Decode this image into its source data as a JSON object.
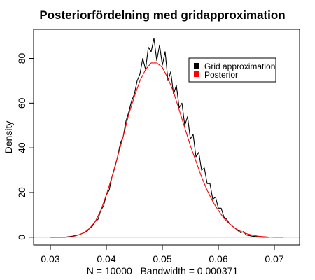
{
  "chart_data": {
    "type": "line",
    "title": "Posteriorfördelning med gridapproximation",
    "xlabel": "N = 10000   Bandwidth = 0.000371",
    "ylabel": "Density",
    "xlim": [
      0.027,
      0.0745
    ],
    "ylim": [
      -3.5,
      93
    ],
    "x_ticks": [
      "0.03",
      "0.04",
      "0.05",
      "0.06",
      "0.07"
    ],
    "x_tick_values": [
      0.03,
      0.04,
      0.05,
      0.06,
      0.07
    ],
    "y_ticks": [
      "0",
      "20",
      "40",
      "60",
      "80"
    ],
    "y_tick_values": [
      0,
      20,
      40,
      60,
      80
    ],
    "grid": false,
    "legend_position": "top-right",
    "baseline": {
      "y": 0,
      "color": "#bebebe"
    },
    "series": [
      {
        "name": "Grid approximation",
        "color": "#000000",
        "x": [
          0.03,
          0.0325,
          0.034,
          0.035,
          0.036,
          0.0365,
          0.037,
          0.0375,
          0.038,
          0.0385,
          0.039,
          0.0395,
          0.04,
          0.0405,
          0.041,
          0.0415,
          0.042,
          0.0425,
          0.043,
          0.0435,
          0.044,
          0.0445,
          0.045,
          0.0455,
          0.046,
          0.0465,
          0.047,
          0.0475,
          0.048,
          0.0485,
          0.049,
          0.0495,
          0.05,
          0.0505,
          0.051,
          0.0515,
          0.052,
          0.0525,
          0.053,
          0.0535,
          0.054,
          0.0545,
          0.055,
          0.0555,
          0.056,
          0.0565,
          0.057,
          0.0575,
          0.058,
          0.0585,
          0.059,
          0.0595,
          0.06,
          0.0605,
          0.061,
          0.0615,
          0.062,
          0.0625,
          0.063,
          0.0635,
          0.064,
          0.0645,
          0.065,
          0.066,
          0.067,
          0.068,
          0.069
        ],
        "y": [
          0,
          0,
          0.5,
          1,
          2,
          2.5,
          4,
          5,
          7,
          8,
          12,
          14,
          19,
          21,
          27,
          31,
          36,
          42,
          45,
          52,
          56,
          61,
          64,
          70,
          73,
          80,
          75,
          85,
          83,
          89,
          79,
          86,
          77,
          83,
          70,
          74,
          64,
          68,
          58,
          60,
          50,
          54,
          44,
          46,
          36,
          38,
          30,
          31,
          24,
          24,
          17,
          18,
          13,
          13,
          9,
          8,
          6,
          5,
          4,
          3,
          2,
          2.5,
          1,
          0.5,
          0.2,
          0,
          0
        ]
      },
      {
        "name": "Posterior",
        "color": "#ff0000",
        "x": [
          0.03,
          0.0325,
          0.034,
          0.035,
          0.036,
          0.037,
          0.038,
          0.039,
          0.04,
          0.041,
          0.042,
          0.043,
          0.044,
          0.045,
          0.046,
          0.047,
          0.048,
          0.049,
          0.05,
          0.051,
          0.052,
          0.053,
          0.054,
          0.055,
          0.056,
          0.057,
          0.058,
          0.059,
          0.06,
          0.061,
          0.062,
          0.063,
          0.064,
          0.065,
          0.066,
          0.067,
          0.068,
          0.069,
          0.07,
          0.0715
        ],
        "y": [
          0,
          0,
          0.3,
          1,
          2,
          4,
          7,
          12,
          19,
          27,
          36,
          45,
          55,
          63,
          70,
          75,
          78,
          78,
          76,
          71,
          65,
          57,
          49,
          41,
          34,
          27,
          21,
          16,
          12,
          8.5,
          6,
          4,
          2.6,
          1.6,
          1,
          0.5,
          0.3,
          0.1,
          0,
          0
        ]
      }
    ]
  }
}
